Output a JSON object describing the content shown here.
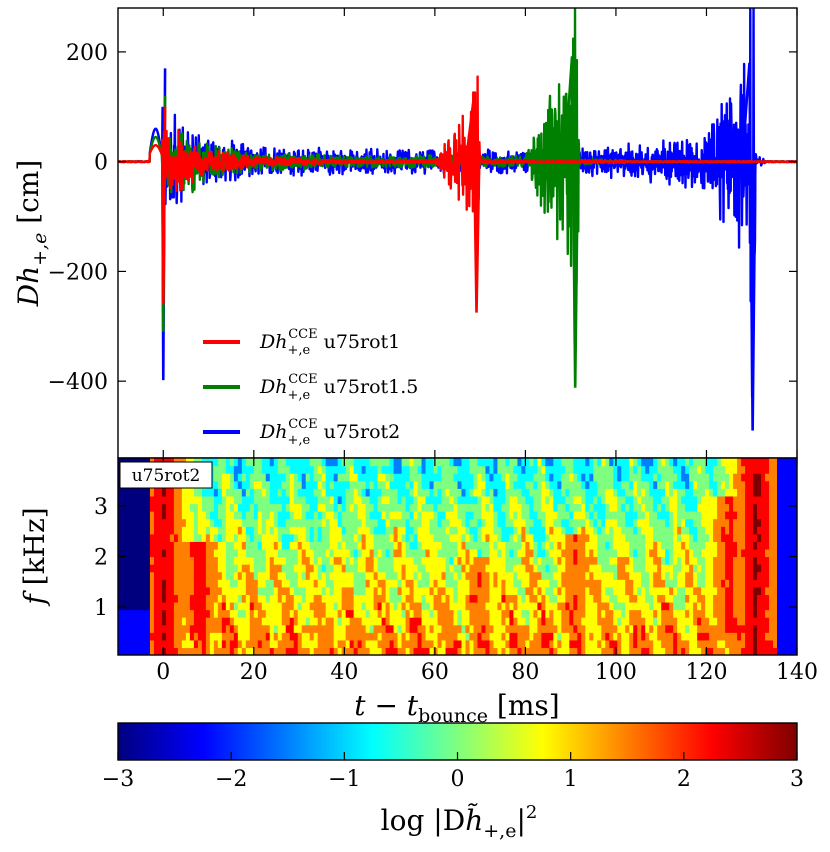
{
  "chart_data": [
    {
      "type": "line",
      "name": "waveform",
      "ylabel": "Dh+,e [cm]",
      "ylim": [
        -540,
        280
      ],
      "xlim": [
        -10,
        140
      ],
      "yticks": [
        200,
        0,
        -200,
        -400
      ],
      "ytick_labels": [
        "200",
        "0",
        "−200",
        "−400"
      ],
      "series": [
        {
          "name": "Dh+,e^CCE u75rot1",
          "label_pre": "Dh",
          "label_sub": "+,e",
          "label_sup": "CCE",
          "label_model": "u75rot1",
          "color": "#ff0000",
          "x": [
            -10,
            -2,
            0,
            0.5,
            2,
            5,
            10,
            20,
            40,
            60,
            68.5,
            69.2,
            70,
            80,
            100,
            120,
            140
          ],
          "y": [
            0,
            10,
            -260,
            100,
            60,
            -40,
            20,
            8,
            3,
            2,
            110,
            -275,
            4,
            1,
            0,
            0,
            0
          ]
        },
        {
          "name": "Dh+,e^CCE u75rot1.5",
          "label_pre": "Dh",
          "label_sub": "+,e",
          "label_sup": "CCE",
          "label_model": "u75rot1.5",
          "color": "#008000",
          "x": [
            -10,
            -2,
            0,
            0.5,
            2,
            5,
            10,
            20,
            40,
            60,
            80,
            90.3,
            91,
            92,
            100,
            120,
            140
          ],
          "y": [
            0,
            20,
            -310,
            120,
            80,
            -60,
            30,
            15,
            10,
            10,
            10,
            192,
            -412,
            5,
            3,
            1,
            0
          ]
        },
        {
          "name": "Dh+,e^CCE u75rot2",
          "label_pre": "Dh",
          "label_sub": "+,e",
          "label_sup": "CCE",
          "label_model": "u75rot2",
          "color": "#0000ff",
          "x": [
            -10,
            -2,
            0,
            0.5,
            2,
            5,
            10,
            20,
            40,
            60,
            80,
            100,
            120,
            129.5,
            130.2,
            131,
            135,
            140
          ],
          "y": [
            0,
            30,
            -398,
            170,
            90,
            -50,
            40,
            25,
            20,
            20,
            20,
            25,
            45,
            180,
            -490,
            10,
            0,
            0
          ]
        }
      ]
    },
    {
      "type": "heatmap",
      "name": "spectrogram",
      "panel_label": "u75rot2",
      "xlabel": "t − t_bounce [ms]",
      "ylabel": "f [kHz]",
      "xlim": [
        -10,
        140
      ],
      "ylim": [
        0.05,
        3.95
      ],
      "xticks": [
        0,
        20,
        40,
        60,
        80,
        100,
        120,
        140
      ],
      "xtick_labels": [
        "0",
        "20",
        "40",
        "60",
        "80",
        "100",
        "120",
        "140"
      ],
      "yticks": [
        1,
        2,
        3
      ],
      "ytick_labels": [
        "1",
        "2",
        "3"
      ],
      "value": "log |Dĥ+,e|^2",
      "hot_regions": [
        {
          "t": 0,
          "f": [
            0.05,
            3.95
          ],
          "level": 2.7
        },
        {
          "t": 8,
          "f": [
            0.5,
            2.3
          ],
          "level": 2.4
        },
        {
          "t": 70,
          "f": [
            0.5,
            2.0
          ],
          "level": 1.8
        },
        {
          "t": 91,
          "f": [
            0.5,
            2.5
          ],
          "level": 1.9
        },
        {
          "t": 125,
          "f": [
            0.5,
            3.2
          ],
          "level": 2.2
        },
        {
          "t": 131,
          "f": [
            0.05,
            3.95
          ],
          "level": 2.8
        }
      ]
    },
    {
      "type": "colorbar",
      "name": "colorbar",
      "label": "log |Dh̃+,e|²",
      "range": [
        -3,
        3
      ],
      "ticks": [
        -3,
        -2,
        -1,
        0,
        1,
        2,
        3
      ],
      "tick_labels": [
        "−3",
        "−2",
        "−1",
        "0",
        "1",
        "2",
        "3"
      ],
      "colors": [
        "#00007f",
        "#0000ff",
        "#007fff",
        "#00ffff",
        "#7fff7f",
        "#ffff00",
        "#ff7f00",
        "#ff0000",
        "#7f0000"
      ]
    }
  ],
  "labels": {
    "top_ylabel_main": "Dh",
    "top_ylabel_sub": "+,e",
    "top_ylabel_unit": " [cm]",
    "bottom_ylabel_main": "f",
    "bottom_ylabel_unit": " [kHz]",
    "xlabel_main": "t − t",
    "xlabel_sub": "bounce",
    "xlabel_unit": " [ms]",
    "cbar_label_pre": "log |D",
    "cbar_label_h": "h̃",
    "cbar_label_sub": "+,e",
    "cbar_label_post": "|",
    "cbar_label_sup": "2"
  }
}
